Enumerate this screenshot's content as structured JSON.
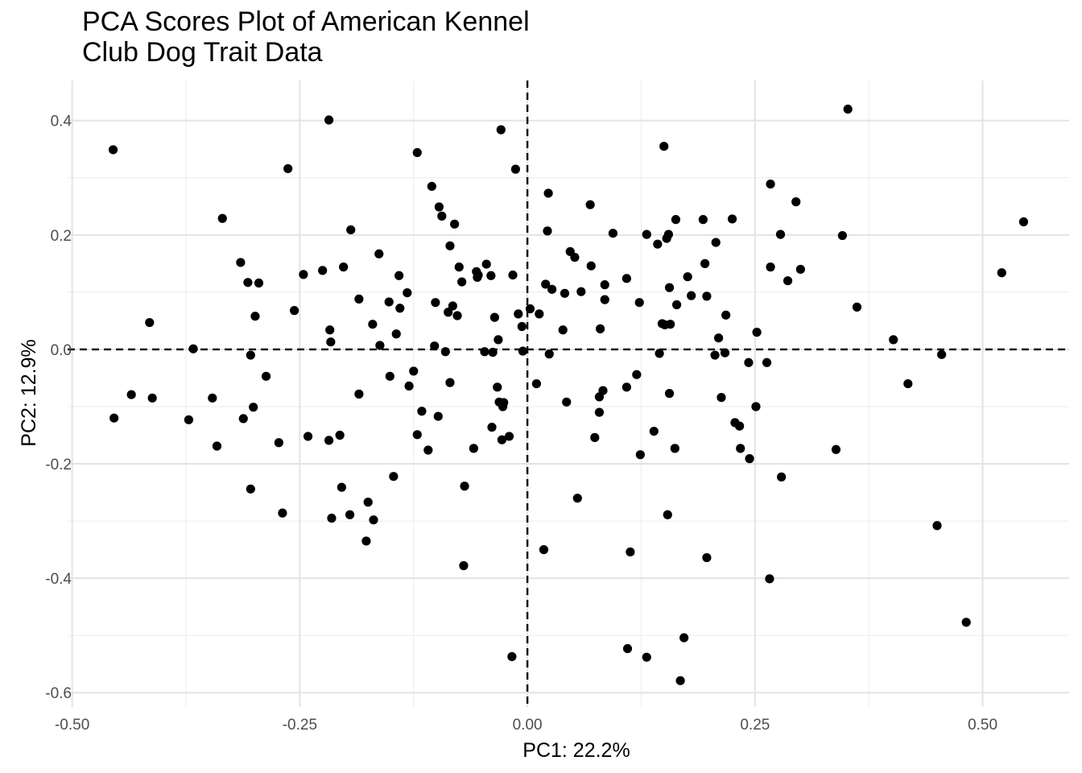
{
  "chart_data": {
    "type": "scatter",
    "title": "PCA Scores Plot of American Kennel\nClub Dog Trait Data",
    "xlabel": "PC1: 22.2%",
    "ylabel": "PC2: 12.9%",
    "xlim": [
      -0.505,
      0.595
    ],
    "ylim": [
      -0.625,
      0.47
    ],
    "x_ticks": [
      -0.5,
      -0.25,
      0,
      0.25,
      0.5
    ],
    "x_tick_labels": [
      "-0.50",
      "-0.25",
      "0.00",
      "0.25",
      "0.50"
    ],
    "y_ticks": [
      -0.6,
      -0.4,
      -0.2,
      0,
      0.2,
      0.4
    ],
    "y_tick_labels": [
      "-0.6",
      "-0.4",
      "-0.2",
      "0.0",
      "0.2",
      "0.4"
    ],
    "grid": true,
    "reference_lines": {
      "x": 0,
      "y": 0,
      "style": "dashed"
    },
    "point_color": "#000000",
    "points": [
      [
        -0.455,
        0.349
      ],
      [
        -0.454,
        -0.12
      ],
      [
        -0.435,
        -0.079
      ],
      [
        -0.415,
        0.047
      ],
      [
        -0.412,
        -0.085
      ],
      [
        -0.372,
        -0.123
      ],
      [
        -0.367,
        0.001
      ],
      [
        -0.346,
        -0.085
      ],
      [
        -0.341,
        -0.169
      ],
      [
        -0.335,
        0.229
      ],
      [
        -0.315,
        0.152
      ],
      [
        -0.312,
        -0.121
      ],
      [
        -0.307,
        0.117
      ],
      [
        -0.304,
        -0.244
      ],
      [
        -0.304,
        -0.01
      ],
      [
        -0.301,
        -0.101
      ],
      [
        -0.299,
        0.058
      ],
      [
        -0.295,
        0.116
      ],
      [
        -0.287,
        -0.047
      ],
      [
        -0.273,
        -0.163
      ],
      [
        -0.269,
        -0.286
      ],
      [
        -0.263,
        0.316
      ],
      [
        -0.256,
        0.068
      ],
      [
        -0.246,
        0.131
      ],
      [
        -0.241,
        -0.152
      ],
      [
        -0.225,
        0.138
      ],
      [
        -0.218,
        -0.159
      ],
      [
        -0.217,
        0.034
      ],
      [
        -0.216,
        0.013
      ],
      [
        -0.215,
        -0.295
      ],
      [
        -0.218,
        0.401
      ],
      [
        -0.206,
        -0.15
      ],
      [
        -0.204,
        -0.241
      ],
      [
        -0.202,
        0.144
      ],
      [
        -0.195,
        -0.289
      ],
      [
        -0.194,
        0.209
      ],
      [
        -0.185,
        0.088
      ],
      [
        -0.185,
        -0.078
      ],
      [
        -0.177,
        -0.335
      ],
      [
        -0.175,
        -0.267
      ],
      [
        -0.17,
        0.044
      ],
      [
        -0.169,
        -0.298
      ],
      [
        -0.163,
        0.167
      ],
      [
        -0.162,
        0.007
      ],
      [
        -0.152,
        0.083
      ],
      [
        -0.151,
        -0.047
      ],
      [
        -0.147,
        -0.222
      ],
      [
        -0.144,
        0.027
      ],
      [
        -0.141,
        0.129
      ],
      [
        -0.14,
        0.072
      ],
      [
        -0.132,
        0.099
      ],
      [
        -0.13,
        -0.064
      ],
      [
        -0.125,
        -0.038
      ],
      [
        -0.121,
        0.344
      ],
      [
        -0.121,
        -0.149
      ],
      [
        -0.116,
        -0.108
      ],
      [
        -0.109,
        -0.176
      ],
      [
        -0.105,
        0.285
      ],
      [
        -0.102,
        0.006
      ],
      [
        -0.101,
        0.082
      ],
      [
        -0.098,
        -0.117
      ],
      [
        -0.097,
        0.249
      ],
      [
        -0.094,
        0.233
      ],
      [
        -0.09,
        -0.004
      ],
      [
        -0.087,
        0.065
      ],
      [
        -0.085,
        0.181
      ],
      [
        -0.085,
        -0.058
      ],
      [
        -0.082,
        0.076
      ],
      [
        -0.08,
        0.219
      ],
      [
        -0.077,
        0.059
      ],
      [
        -0.075,
        0.144
      ],
      [
        -0.072,
        0.118
      ],
      [
        -0.07,
        -0.378
      ],
      [
        -0.069,
        -0.239
      ],
      [
        -0.059,
        -0.173
      ],
      [
        -0.056,
        0.136
      ],
      [
        -0.055,
        0.126
      ],
      [
        -0.054,
        0.13
      ],
      [
        -0.047,
        -0.004
      ],
      [
        -0.045,
        0.149
      ],
      [
        -0.04,
        0.129
      ],
      [
        -0.039,
        -0.136
      ],
      [
        -0.038,
        -0.005
      ],
      [
        -0.036,
        0.056
      ],
      [
        -0.033,
        -0.066
      ],
      [
        -0.032,
        0.017
      ],
      [
        -0.031,
        -0.092
      ],
      [
        -0.029,
        0.384
      ],
      [
        -0.028,
        -0.158
      ],
      [
        -0.027,
        -0.1
      ],
      [
        -0.026,
        -0.093
      ],
      [
        -0.02,
        -0.152
      ],
      [
        -0.017,
        -0.537
      ],
      [
        -0.016,
        0.13
      ],
      [
        -0.013,
        0.315
      ],
      [
        -0.01,
        0.062
      ],
      [
        -0.006,
        0.04
      ],
      [
        -0.005,
        -0.003
      ],
      [
        0.003,
        0.071
      ],
      [
        0.01,
        -0.06
      ],
      [
        0.013,
        0.062
      ],
      [
        0.018,
        -0.35
      ],
      [
        0.02,
        0.114
      ],
      [
        0.022,
        0.207
      ],
      [
        0.023,
        0.273
      ],
      [
        0.024,
        -0.008
      ],
      [
        0.027,
        0.105
      ],
      [
        0.039,
        0.034
      ],
      [
        0.041,
        0.098
      ],
      [
        0.043,
        -0.092
      ],
      [
        0.047,
        0.171
      ],
      [
        0.052,
        0.161
      ],
      [
        0.055,
        -0.26
      ],
      [
        0.059,
        0.101
      ],
      [
        0.069,
        0.253
      ],
      [
        0.07,
        0.146
      ],
      [
        0.074,
        -0.154
      ],
      [
        0.079,
        -0.083
      ],
      [
        0.079,
        -0.11
      ],
      [
        0.08,
        0.036
      ],
      [
        0.083,
        -0.072
      ],
      [
        0.085,
        0.087
      ],
      [
        0.085,
        0.113
      ],
      [
        0.094,
        0.203
      ],
      [
        0.109,
        0.124
      ],
      [
        0.109,
        -0.066
      ],
      [
        0.11,
        -0.523
      ],
      [
        0.113,
        -0.354
      ],
      [
        0.12,
        -0.044
      ],
      [
        0.123,
        0.082
      ],
      [
        0.124,
        -0.184
      ],
      [
        0.131,
        0.201
      ],
      [
        0.131,
        -0.538
      ],
      [
        0.139,
        -0.143
      ],
      [
        0.143,
        0.184
      ],
      [
        0.145,
        -0.007
      ],
      [
        0.148,
        0.045
      ],
      [
        0.15,
        0.355
      ],
      [
        0.151,
        0.043
      ],
      [
        0.153,
        0.194
      ],
      [
        0.154,
        -0.289
      ],
      [
        0.155,
        0.201
      ],
      [
        0.156,
        0.108
      ],
      [
        0.156,
        -0.077
      ],
      [
        0.157,
        0.044
      ],
      [
        0.162,
        -0.173
      ],
      [
        0.163,
        0.227
      ],
      [
        0.164,
        0.078
      ],
      [
        0.168,
        -0.579
      ],
      [
        0.172,
        -0.504
      ],
      [
        0.176,
        0.127
      ],
      [
        0.18,
        0.094
      ],
      [
        0.193,
        0.227
      ],
      [
        0.195,
        0.15
      ],
      [
        0.197,
        0.093
      ],
      [
        0.197,
        -0.364
      ],
      [
        0.206,
        -0.01
      ],
      [
        0.207,
        0.187
      ],
      [
        0.21,
        0.02
      ],
      [
        0.213,
        -0.084
      ],
      [
        0.217,
        -0.006
      ],
      [
        0.218,
        0.06
      ],
      [
        0.225,
        0.228
      ],
      [
        0.228,
        -0.128
      ],
      [
        0.233,
        -0.134
      ],
      [
        0.234,
        -0.173
      ],
      [
        0.243,
        -0.023
      ],
      [
        0.244,
        -0.191
      ],
      [
        0.251,
        -0.1
      ],
      [
        0.252,
        0.03
      ],
      [
        0.263,
        -0.023
      ],
      [
        0.266,
        -0.401
      ],
      [
        0.267,
        0.144
      ],
      [
        0.267,
        0.289
      ],
      [
        0.278,
        0.201
      ],
      [
        0.279,
        -0.223
      ],
      [
        0.286,
        0.12
      ],
      [
        0.295,
        0.258
      ],
      [
        0.3,
        0.14
      ],
      [
        0.339,
        -0.175
      ],
      [
        0.346,
        0.199
      ],
      [
        0.352,
        0.42
      ],
      [
        0.362,
        0.074
      ],
      [
        0.402,
        0.017
      ],
      [
        0.418,
        -0.06
      ],
      [
        0.45,
        -0.308
      ],
      [
        0.455,
        -0.009
      ],
      [
        0.482,
        -0.477
      ],
      [
        0.521,
        0.134
      ],
      [
        0.545,
        0.223
      ]
    ]
  }
}
